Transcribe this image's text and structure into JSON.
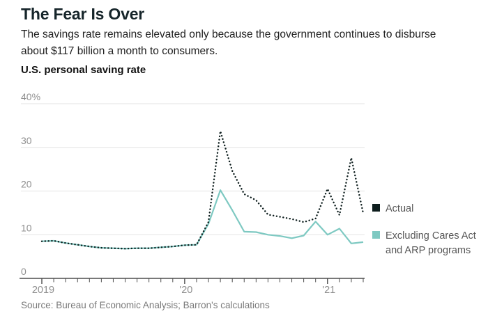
{
  "header": {
    "title": "The Fear Is Over",
    "subtitle_line1": "The savings rate remains elevated only because the government continues to disburse",
    "subtitle_line2": "about $117 billion a month to consumers.",
    "chart_label": "U.S. personal saving rate"
  },
  "legend": {
    "items": [
      {
        "label": "Actual",
        "color": "#0e1e1e"
      },
      {
        "label": "Excluding Cares Act and ARP programs",
        "label_line1": "Excluding Cares Act",
        "label_line2": "and ARP programs",
        "color": "#7ec9c2"
      }
    ]
  },
  "source": "Source: Bureau of Economic Analysis; Barron's calculations",
  "colors": {
    "actual_line": "#0e1e1e",
    "excluding_line": "#7ec9c2",
    "gridline": "#e3e3e3",
    "axis": "#4d4d4d",
    "tick_label": "#8f8f8f"
  },
  "chart_data": {
    "type": "line",
    "title": "U.S. personal saving rate",
    "xlabel": "",
    "ylabel": "",
    "grid": "horizontal",
    "legend_position": "right",
    "ylim": [
      0,
      40
    ],
    "yticks": [
      0,
      10,
      20,
      30,
      40
    ],
    "ytick_labels": [
      "0",
      "10",
      "20",
      "30",
      "40%"
    ],
    "xticks": [
      {
        "index": 0,
        "label": "2019"
      },
      {
        "index": 12,
        "label": "'20"
      },
      {
        "index": 24,
        "label": "'21"
      }
    ],
    "x": [
      "2019-01",
      "2019-02",
      "2019-03",
      "2019-04",
      "2019-05",
      "2019-06",
      "2019-07",
      "2019-08",
      "2019-09",
      "2019-10",
      "2019-11",
      "2019-12",
      "2020-01",
      "2020-02",
      "2020-03",
      "2020-04",
      "2020-05",
      "2020-06",
      "2020-07",
      "2020-08",
      "2020-09",
      "2020-10",
      "2020-11",
      "2020-12",
      "2021-01",
      "2021-02",
      "2021-03",
      "2021-04"
    ],
    "series": [
      {
        "name": "Actual",
        "style": "dotted",
        "color": "#0e1e1e",
        "values": [
          8.5,
          8.6,
          8.1,
          7.7,
          7.3,
          7.0,
          6.9,
          6.8,
          6.9,
          6.9,
          7.1,
          7.3,
          7.6,
          7.7,
          12.9,
          33.7,
          24.6,
          19.3,
          17.9,
          14.6,
          14.1,
          13.6,
          12.9,
          13.7,
          20.5,
          14.5,
          27.6,
          14.9
        ]
      },
      {
        "name": "Excluding Cares Act and ARP programs",
        "style": "solid",
        "color": "#7ec9c2",
        "values": [
          8.5,
          8.6,
          8.1,
          7.7,
          7.3,
          7.0,
          6.9,
          6.8,
          6.9,
          6.9,
          7.1,
          7.3,
          7.6,
          7.7,
          12.5,
          20.2,
          15.6,
          10.7,
          10.6,
          10.0,
          9.7,
          9.2,
          9.8,
          13.0,
          10.0,
          11.4,
          8.0,
          8.3
        ]
      }
    ]
  }
}
